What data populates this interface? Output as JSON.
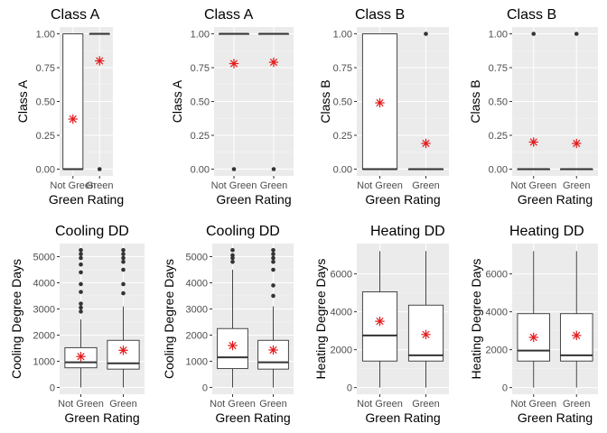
{
  "chart_data": [
    {
      "type": "boxplot",
      "title": "Class A",
      "xlabel": "Green Rating",
      "ylabel": "Class A",
      "categories": [
        "Not Green",
        "Green"
      ],
      "yticks": [
        "0.00",
        "0.25",
        "0.50",
        "0.75",
        "1.00"
      ],
      "ylim": [
        -0.05,
        1.05
      ],
      "boxes": [
        {
          "q1": 0,
          "median": 0,
          "q3": 1,
          "lower": 0,
          "upper": 1,
          "mean": 0.37,
          "outliers": []
        },
        {
          "q1": 1,
          "median": 1,
          "q3": 1,
          "lower": 1,
          "upper": 1,
          "mean": 0.8,
          "outliers": [
            0
          ]
        }
      ]
    },
    {
      "type": "boxplot",
      "title": "Class A",
      "xlabel": "Green Rating",
      "ylabel": "Class A",
      "categories": [
        "Not Green",
        "Green"
      ],
      "yticks": [
        "0.00",
        "0.25",
        "0.50",
        "0.75",
        "1.00"
      ],
      "ylim": [
        -0.05,
        1.05
      ],
      "boxes": [
        {
          "q1": 1,
          "median": 1,
          "q3": 1,
          "lower": 1,
          "upper": 1,
          "mean": 0.78,
          "outliers": [
            0
          ]
        },
        {
          "q1": 1,
          "median": 1,
          "q3": 1,
          "lower": 1,
          "upper": 1,
          "mean": 0.79,
          "outliers": [
            0
          ]
        }
      ]
    },
    {
      "type": "boxplot",
      "title": "Class B",
      "xlabel": "Green Rating",
      "ylabel": "Class B",
      "categories": [
        "Not Green",
        "Green"
      ],
      "yticks": [
        "0.00",
        "0.25",
        "0.50",
        "0.75",
        "1.00"
      ],
      "ylim": [
        -0.05,
        1.05
      ],
      "boxes": [
        {
          "q1": 0,
          "median": 0,
          "q3": 1,
          "lower": 0,
          "upper": 1,
          "mean": 0.49,
          "outliers": []
        },
        {
          "q1": 0,
          "median": 0,
          "q3": 0,
          "lower": 0,
          "upper": 0,
          "mean": 0.19,
          "outliers": [
            1
          ]
        }
      ]
    },
    {
      "type": "boxplot",
      "title": "Class B",
      "xlabel": "Green Rating",
      "ylabel": "Class B",
      "categories": [
        "Not Green",
        "Green"
      ],
      "yticks": [
        "0.00",
        "0.25",
        "0.50",
        "0.75",
        "1.00"
      ],
      "ylim": [
        -0.05,
        1.05
      ],
      "boxes": [
        {
          "q1": 0,
          "median": 0,
          "q3": 0,
          "lower": 0,
          "upper": 0,
          "mean": 0.2,
          "outliers": [
            1
          ]
        },
        {
          "q1": 0,
          "median": 0,
          "q3": 0,
          "lower": 0,
          "upper": 0,
          "mean": 0.19,
          "outliers": [
            1
          ]
        }
      ]
    },
    {
      "type": "boxplot",
      "title": "Cooling DD",
      "xlabel": "Green Rating",
      "ylabel": "Cooling Degree Days",
      "categories": [
        "Not Green",
        "Green"
      ],
      "yticks": [
        "0",
        "1000",
        "2000",
        "3000",
        "4000",
        "5000"
      ],
      "ylim": [
        -260,
        5500
      ],
      "boxes": [
        {
          "q1": 750,
          "median": 960,
          "q3": 1520,
          "lower": 0,
          "upper": 2600,
          "mean": 1180,
          "outliers": [
            2900,
            3050,
            3200,
            3650,
            3950,
            4400,
            4700,
            4950,
            5100,
            5250
          ]
        },
        {
          "q1": 700,
          "median": 920,
          "q3": 1800,
          "lower": 0,
          "upper": 3100,
          "mean": 1420,
          "outliers": [
            3600,
            3950,
            4500,
            4800,
            4950,
            5100,
            5250
          ]
        }
      ]
    },
    {
      "type": "boxplot",
      "title": "Cooling DD",
      "xlabel": "Green Rating",
      "ylabel": "Cooling Degree Days",
      "categories": [
        "Not Green",
        "Green"
      ],
      "yticks": [
        "0",
        "1000",
        "2000",
        "3000",
        "4000",
        "5000"
      ],
      "ylim": [
        -260,
        5500
      ],
      "boxes": [
        {
          "q1": 720,
          "median": 1150,
          "q3": 2250,
          "lower": 0,
          "upper": 4500,
          "mean": 1600,
          "outliers": [
            4800,
            4950,
            5050,
            5250
          ]
        },
        {
          "q1": 700,
          "median": 960,
          "q3": 1800,
          "lower": 0,
          "upper": 3100,
          "mean": 1430,
          "outliers": [
            3500,
            3900,
            4500,
            4800,
            4950,
            5100,
            5250
          ]
        }
      ]
    },
    {
      "type": "boxplot",
      "title": "Heating DD",
      "xlabel": "Green Rating",
      "ylabel": "Heating Degree Days",
      "categories": [
        "Not Green",
        "Green"
      ],
      "yticks": [
        "0",
        "2000",
        "4000",
        "6000"
      ],
      "ylim": [
        -350,
        7600
      ],
      "boxes": [
        {
          "q1": 1400,
          "median": 2750,
          "q3": 5050,
          "lower": 0,
          "upper": 7200,
          "mean": 3500,
          "outliers": []
        },
        {
          "q1": 1400,
          "median": 1700,
          "q3": 4350,
          "lower": 0,
          "upper": 7200,
          "mean": 2800,
          "outliers": []
        }
      ]
    },
    {
      "type": "boxplot",
      "title": "Heating DD",
      "xlabel": "Green Rating",
      "ylabel": "Heating Degree Days",
      "categories": [
        "Not Green",
        "Green"
      ],
      "yticks": [
        "0",
        "2000",
        "4000",
        "6000"
      ],
      "ylim": [
        -350,
        7600
      ],
      "boxes": [
        {
          "q1": 1400,
          "median": 1950,
          "q3": 3900,
          "lower": 0,
          "upper": 7200,
          "mean": 2650,
          "outliers": []
        },
        {
          "q1": 1400,
          "median": 1700,
          "q3": 3900,
          "lower": 0,
          "upper": 7200,
          "mean": 2750,
          "outliers": []
        }
      ]
    }
  ],
  "style": {
    "panel_bg": "#ebebeb",
    "grid_major": "#ffffff",
    "box_fill": "#ffffff",
    "box_line": "#333333",
    "outlier_color": "#333333",
    "mean_marker_color": "#e31a1c",
    "mean_marker": "asterisk"
  }
}
